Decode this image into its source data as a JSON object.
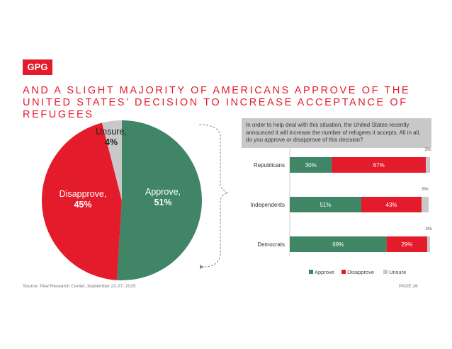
{
  "brand": {
    "logo_text": "GPG",
    "accent_color": "#e31b2b"
  },
  "headline": "AND A SLIGHT MAJORITY OF AMERICANS APPROVE OF THE UNITED STATES’ DECISION TO INCREASE ACCEPTANCE OF REFUGEES",
  "question": "In order to help deal with this situation, the United States recently announced it will increase the number of refugees it accepts. All in all, do you approve or disapprove of this decision?",
  "footer": {
    "source": "Source: Pew Research Center, September 22-27, 2015",
    "page": "PAGE 26"
  },
  "colors": {
    "approve": "#3f8566",
    "disapprove": "#e31b2b",
    "unsure": "#c8c8c8",
    "bracket": "#888888"
  },
  "chart_data": [
    {
      "type": "pie",
      "categories": [
        "Approve",
        "Disapprove",
        "Unsure"
      ],
      "values": [
        51,
        45,
        4
      ],
      "labels": [
        {
          "name": "Approve,",
          "value": "51%"
        },
        {
          "name": "Disapprove,",
          "value": "45%"
        },
        {
          "name": "Unsure,",
          "value": "4%"
        }
      ]
    },
    {
      "type": "bar",
      "orientation": "horizontal",
      "stacked": true,
      "categories": [
        "Republicans",
        "Independents",
        "Democrats"
      ],
      "series": [
        {
          "name": "Approve",
          "values": [
            30,
            51,
            69
          ],
          "labels": [
            "30%",
            "51%",
            "69%"
          ]
        },
        {
          "name": "Disapprove",
          "values": [
            67,
            43,
            29
          ],
          "labels": [
            "67%",
            "43%",
            "29%"
          ]
        },
        {
          "name": "Unsure",
          "values": [
            3,
            5,
            2
          ],
          "labels": [
            "3%",
            "5%",
            "2%"
          ]
        }
      ],
      "xlim": [
        0,
        100
      ],
      "legend": "bottom"
    }
  ]
}
